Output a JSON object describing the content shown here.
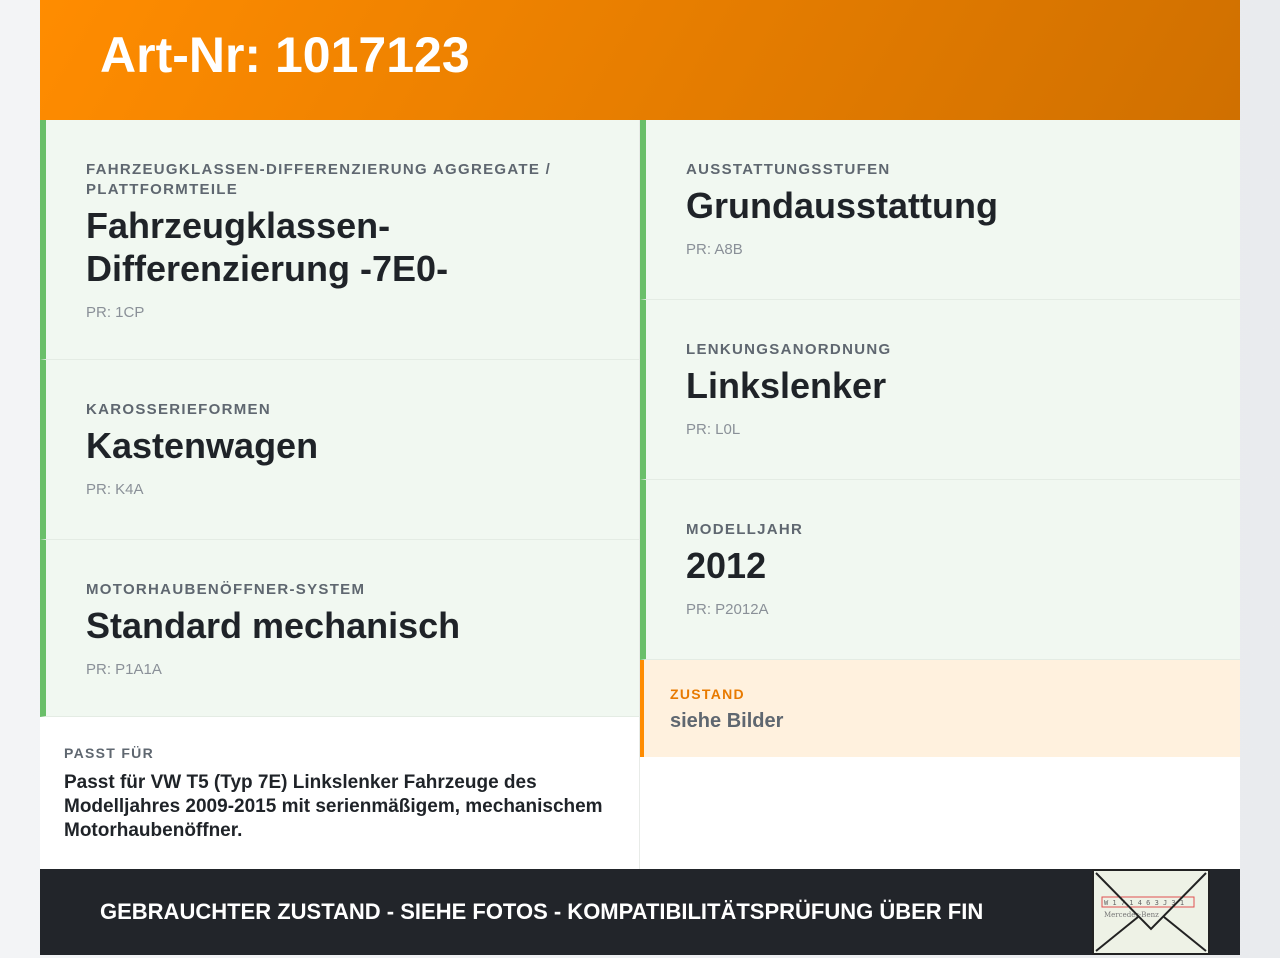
{
  "header": {
    "title": "Art-Nr: 1017123"
  },
  "left": [
    {
      "label": "Fahrzeugklassen-Differenzierung Aggregate / Plattformteile",
      "value": "Fahrzeugklassen-Differenzierung -7E0-",
      "pr": "PR: 1CP"
    },
    {
      "label": "Karosserieformen",
      "value": "Kastenwagen",
      "pr": "PR: K4A"
    },
    {
      "label": "Motorhaubenöffner-System",
      "value": "Standard mechanisch",
      "pr": "PR: P1A1A"
    }
  ],
  "right": [
    {
      "label": "Ausstattungsstufen",
      "value": "Grundausstattung",
      "pr": "PR: A8B"
    },
    {
      "label": "Lenkungsanordnung",
      "value": "Linkslenker",
      "pr": "PR: L0L"
    },
    {
      "label": "Modelljahr",
      "value": "2012",
      "pr": "PR: P2012A"
    }
  ],
  "passt": {
    "label": "Passt für",
    "text": "Passt für VW T5 (Typ 7E) Linkslenker Fahrzeuge des Modelljahres 2009-2015 mit serienmäßigem, mechanischem Motorhaubenöffner."
  },
  "zustand": {
    "label": "Zustand",
    "value": "siehe Bilder"
  },
  "footer": {
    "text": "GEBRAUCHTER ZUSTAND - SIEHE FOTOS - KOMPATIBILITÄTSPRÜFUNG ÜBER FIN",
    "image_text": "Mercedes-Benz"
  },
  "colors": {
    "accent": "#ff8c00",
    "green": "#6abf69",
    "dark": "#22252a"
  }
}
